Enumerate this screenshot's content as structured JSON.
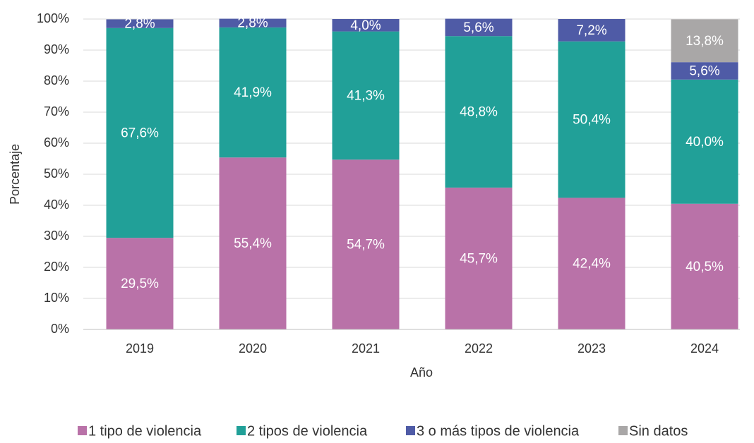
{
  "chart_data": {
    "type": "stacked_bar",
    "x_label": "Año",
    "y_label": "Porcentaje",
    "categories": [
      "2019",
      "2020",
      "2021",
      "2022",
      "2023",
      "2024"
    ],
    "series": [
      {
        "name": "1 tipo de violencia",
        "color": "#b972a8",
        "values": [
          29.5,
          55.4,
          54.7,
          45.7,
          42.4,
          40.5
        ],
        "value_labels": [
          "29,5%",
          "55,4%",
          "54,7%",
          "45,7%",
          "42,4%",
          "40,5%"
        ]
      },
      {
        "name": "2 tipos de violencia",
        "color": "#21a098",
        "values": [
          67.6,
          41.9,
          41.3,
          48.8,
          50.4,
          40.0
        ],
        "value_labels": [
          "67,6%",
          "41,9%",
          "41,3%",
          "48,8%",
          "50,4%",
          "40,0%"
        ]
      },
      {
        "name": "3 o más tipos de violencia",
        "color": "#4f5ba6",
        "values": [
          2.8,
          2.8,
          4.0,
          5.6,
          7.2,
          5.6
        ],
        "value_labels": [
          "2,8%",
          "2,8%",
          "4,0%",
          "5,6%",
          "7,2%",
          "5,6%"
        ]
      },
      {
        "name": "Sin datos",
        "color": "#a9a7a7",
        "values": [
          null,
          null,
          null,
          null,
          null,
          13.8
        ],
        "value_labels": [
          null,
          null,
          null,
          null,
          null,
          "13,8%"
        ]
      }
    ],
    "ylim": [
      0,
      100
    ],
    "yticks": [
      {
        "value": 0,
        "label": "0%"
      },
      {
        "value": 10,
        "label": "10%"
      },
      {
        "value": 20,
        "label": "20%"
      },
      {
        "value": 30,
        "label": "30%"
      },
      {
        "value": 40,
        "label": "40%"
      },
      {
        "value": 50,
        "label": "50%"
      },
      {
        "value": 60,
        "label": "60%"
      },
      {
        "value": 70,
        "label": "70%"
      },
      {
        "value": 80,
        "label": "80%"
      },
      {
        "value": 90,
        "label": "90%"
      },
      {
        "value": 100,
        "label": "100%"
      }
    ],
    "grid": true,
    "legend": "bottom"
  }
}
